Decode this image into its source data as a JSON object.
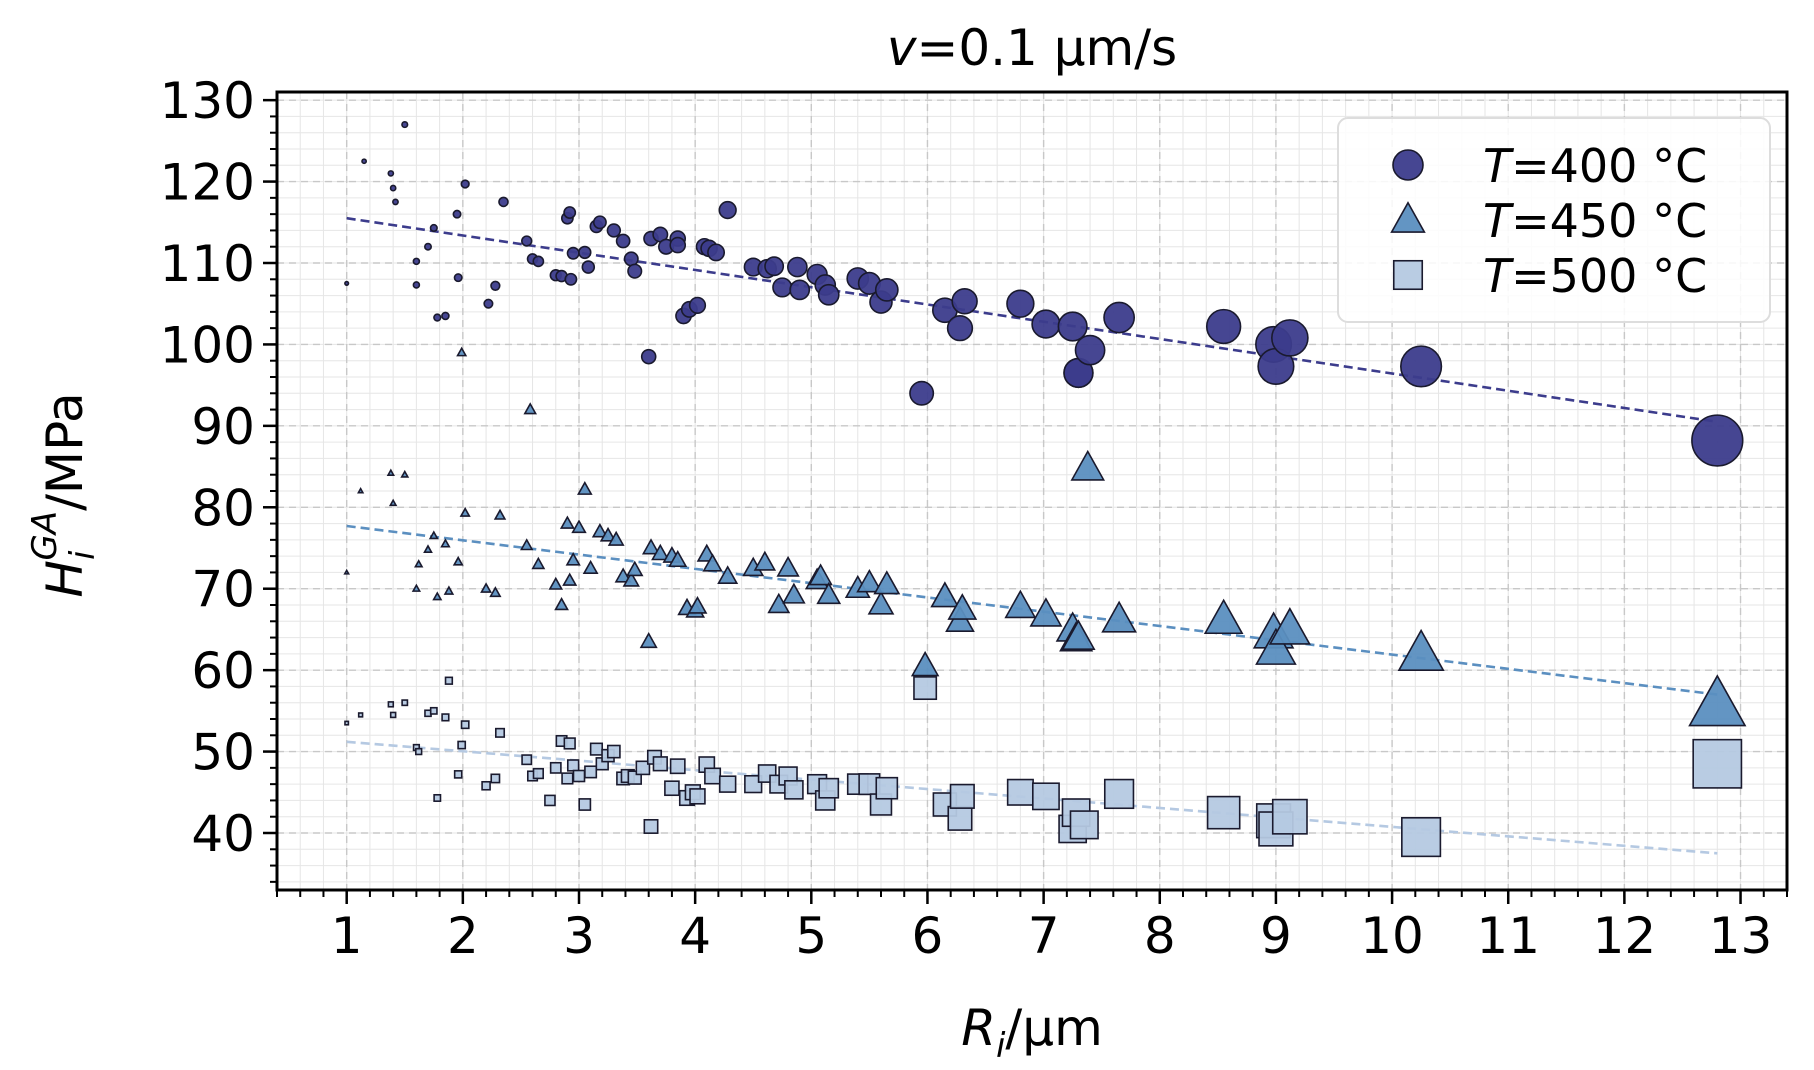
{
  "chart_data": {
    "type": "scatter",
    "title": {
      "italic": "v",
      "rest": "=0.1 µm/s"
    },
    "xlabel": {
      "italic": "R",
      "sub": "i",
      "rest": "/µm"
    },
    "ylabel": {
      "italic": "H",
      "sub": "i",
      "sup": "GA",
      "rest": "/MPa"
    },
    "xlim": [
      0.4,
      13.4
    ],
    "ylim": [
      33,
      131
    ],
    "xticks": [
      1,
      2,
      3,
      4,
      5,
      6,
      7,
      8,
      9,
      10,
      11,
      12,
      13
    ],
    "yticks": [
      40,
      50,
      60,
      70,
      80,
      90,
      100,
      110,
      120,
      130
    ],
    "grid": true,
    "legend_position": "top-right",
    "series": [
      {
        "name": "T=400 °C",
        "legend_italic": "T",
        "legend_rest": "=400 °C",
        "marker": "circle",
        "color": "#3c3c8c",
        "fit": {
          "x": [
            1.0,
            12.8
          ],
          "y": [
            115.5,
            90.5
          ]
        },
        "points": [
          [
            1.0,
            107.5
          ],
          [
            1.15,
            122.5
          ],
          [
            1.38,
            121
          ],
          [
            1.4,
            119.2
          ],
          [
            1.42,
            117.5
          ],
          [
            1.5,
            127
          ],
          [
            1.6,
            107.3
          ],
          [
            1.6,
            110.2
          ],
          [
            1.7,
            112
          ],
          [
            1.75,
            114.3
          ],
          [
            1.78,
            103.3
          ],
          [
            1.85,
            103.5
          ],
          [
            1.95,
            116
          ],
          [
            1.96,
            108.2
          ],
          [
            2.02,
            119.7
          ],
          [
            2.22,
            105
          ],
          [
            2.28,
            107.2
          ],
          [
            2.35,
            117.5
          ],
          [
            2.55,
            112.7
          ],
          [
            2.6,
            110.5
          ],
          [
            2.65,
            110.2
          ],
          [
            2.8,
            108.5
          ],
          [
            2.85,
            108.4
          ],
          [
            2.9,
            115.5
          ],
          [
            2.92,
            116.2
          ],
          [
            2.93,
            108
          ],
          [
            2.95,
            111.2
          ],
          [
            3.05,
            111.3
          ],
          [
            3.08,
            109.5
          ],
          [
            3.15,
            114.5
          ],
          [
            3.18,
            115
          ],
          [
            3.3,
            114
          ],
          [
            3.38,
            112.7
          ],
          [
            3.45,
            110.5
          ],
          [
            3.48,
            109
          ],
          [
            3.6,
            98.5
          ],
          [
            3.62,
            113
          ],
          [
            3.7,
            113.5
          ],
          [
            3.75,
            112
          ],
          [
            3.85,
            113
          ],
          [
            3.85,
            112.2
          ],
          [
            3.9,
            103.5
          ],
          [
            3.95,
            104.3
          ],
          [
            4.02,
            104.8
          ],
          [
            4.08,
            112
          ],
          [
            4.12,
            111.8
          ],
          [
            4.18,
            111.3
          ],
          [
            4.28,
            116.5
          ],
          [
            4.5,
            109.5
          ],
          [
            4.62,
            109.3
          ],
          [
            4.68,
            109.6
          ],
          [
            4.75,
            107
          ],
          [
            4.88,
            109.5
          ],
          [
            4.9,
            106.7
          ],
          [
            5.05,
            108.6
          ],
          [
            5.12,
            107.3
          ],
          [
            5.15,
            106.1
          ],
          [
            5.4,
            108.1
          ],
          [
            5.5,
            107.5
          ],
          [
            5.6,
            105.2
          ],
          [
            5.65,
            106.7
          ],
          [
            5.95,
            94
          ],
          [
            6.15,
            104.2
          ],
          [
            6.28,
            102
          ],
          [
            6.32,
            105.3
          ],
          [
            6.8,
            105
          ],
          [
            7.02,
            102.5
          ],
          [
            7.25,
            102.2
          ],
          [
            7.3,
            96.5
          ],
          [
            7.3,
            96.5
          ],
          [
            7.4,
            99.3
          ],
          [
            7.65,
            103.3
          ],
          [
            8.55,
            102.2
          ],
          [
            8.98,
            100
          ],
          [
            9.0,
            97.3
          ],
          [
            9.12,
            100.8
          ],
          [
            10.25,
            97.3
          ],
          [
            12.8,
            88.2
          ]
        ]
      },
      {
        "name": "T=450 °C",
        "legend_italic": "T",
        "legend_rest": "=450 °C",
        "marker": "triangle",
        "color": "#5b8fc0",
        "fit": {
          "x": [
            1.0,
            12.8
          ],
          "y": [
            77.7,
            57.0
          ]
        },
        "points": [
          [
            1.0,
            72
          ],
          [
            1.12,
            82
          ],
          [
            1.38,
            84.2
          ],
          [
            1.4,
            80.5
          ],
          [
            1.5,
            84
          ],
          [
            1.6,
            70
          ],
          [
            1.62,
            73
          ],
          [
            1.7,
            74.8
          ],
          [
            1.75,
            76.5
          ],
          [
            1.78,
            69
          ],
          [
            1.85,
            75.5
          ],
          [
            1.88,
            69.7
          ],
          [
            1.96,
            73.3
          ],
          [
            1.99,
            99
          ],
          [
            2.02,
            79.3
          ],
          [
            2.2,
            70
          ],
          [
            2.28,
            69.5
          ],
          [
            2.32,
            79
          ],
          [
            2.55,
            75.3
          ],
          [
            2.58,
            92
          ],
          [
            2.65,
            73
          ],
          [
            2.8,
            70.5
          ],
          [
            2.85,
            68
          ],
          [
            2.9,
            78
          ],
          [
            2.92,
            71
          ],
          [
            2.95,
            73.5
          ],
          [
            3.0,
            77.5
          ],
          [
            3.05,
            82.2
          ],
          [
            3.1,
            72.5
          ],
          [
            3.18,
            77
          ],
          [
            3.25,
            76.5
          ],
          [
            3.32,
            76
          ],
          [
            3.38,
            71.5
          ],
          [
            3.45,
            71
          ],
          [
            3.48,
            72.3
          ],
          [
            3.6,
            63.5
          ],
          [
            3.62,
            75
          ],
          [
            3.7,
            74.3
          ],
          [
            3.8,
            74
          ],
          [
            3.85,
            73.5
          ],
          [
            3.93,
            67.6
          ],
          [
            4.0,
            67.3
          ],
          [
            4.02,
            67.8
          ],
          [
            4.1,
            74.2
          ],
          [
            4.15,
            73
          ],
          [
            4.28,
            71.5
          ],
          [
            4.5,
            72.5
          ],
          [
            4.6,
            73.2
          ],
          [
            4.72,
            68
          ],
          [
            4.8,
            72.5
          ],
          [
            4.85,
            69.2
          ],
          [
            5.05,
            71
          ],
          [
            5.08,
            71.5
          ],
          [
            5.15,
            69.2
          ],
          [
            5.4,
            70
          ],
          [
            5.5,
            70.7
          ],
          [
            5.6,
            68
          ],
          [
            5.65,
            70.5
          ],
          [
            5.98,
            60.5
          ],
          [
            6.15,
            69
          ],
          [
            6.28,
            66
          ],
          [
            6.3,
            67.5
          ],
          [
            6.8,
            67.8
          ],
          [
            7.02,
            66.8
          ],
          [
            7.25,
            65
          ],
          [
            7.28,
            63.8
          ],
          [
            7.3,
            64
          ],
          [
            7.38,
            84.8
          ],
          [
            7.65,
            66.2
          ],
          [
            8.55,
            66.2
          ],
          [
            8.98,
            64.5
          ],
          [
            9.0,
            62.5
          ],
          [
            9.12,
            65
          ],
          [
            10.25,
            62
          ],
          [
            12.8,
            55.7
          ]
        ]
      },
      {
        "name": "T=500 °C",
        "legend_italic": "T",
        "legend_rest": "=500 °C",
        "marker": "square",
        "color": "#b5c9e2",
        "fit": {
          "x": [
            1.0,
            12.8
          ],
          "y": [
            51.2,
            37.5
          ]
        },
        "points": [
          [
            1.0,
            53.5
          ],
          [
            1.12,
            54.5
          ],
          [
            1.38,
            55.8
          ],
          [
            1.4,
            54.5
          ],
          [
            1.5,
            56
          ],
          [
            1.6,
            50.5
          ],
          [
            1.62,
            50
          ],
          [
            1.7,
            54.7
          ],
          [
            1.75,
            55
          ],
          [
            1.78,
            44.3
          ],
          [
            1.85,
            54.2
          ],
          [
            1.88,
            58.7
          ],
          [
            1.96,
            47.2
          ],
          [
            1.99,
            50.8
          ],
          [
            2.02,
            53.3
          ],
          [
            2.2,
            45.8
          ],
          [
            2.28,
            46.7
          ],
          [
            2.32,
            52.3
          ],
          [
            2.55,
            49
          ],
          [
            2.6,
            47
          ],
          [
            2.65,
            47.3
          ],
          [
            2.75,
            44
          ],
          [
            2.8,
            48
          ],
          [
            2.85,
            51.3
          ],
          [
            2.9,
            46.7
          ],
          [
            2.92,
            51
          ],
          [
            2.95,
            48.3
          ],
          [
            3.0,
            47
          ],
          [
            3.05,
            43.5
          ],
          [
            3.1,
            47.5
          ],
          [
            3.15,
            50.3
          ],
          [
            3.2,
            48.5
          ],
          [
            3.25,
            49.5
          ],
          [
            3.3,
            50
          ],
          [
            3.38,
            46.7
          ],
          [
            3.42,
            47
          ],
          [
            3.48,
            46.8
          ],
          [
            3.55,
            48
          ],
          [
            3.62,
            40.8
          ],
          [
            3.65,
            49.3
          ],
          [
            3.7,
            48.5
          ],
          [
            3.8,
            45.5
          ],
          [
            3.85,
            48.2
          ],
          [
            3.93,
            44.3
          ],
          [
            3.98,
            45
          ],
          [
            4.02,
            44.5
          ],
          [
            4.1,
            48.4
          ],
          [
            4.15,
            47
          ],
          [
            4.28,
            46
          ],
          [
            4.5,
            46
          ],
          [
            4.62,
            47.3
          ],
          [
            4.72,
            46
          ],
          [
            4.8,
            47
          ],
          [
            4.85,
            45.3
          ],
          [
            5.05,
            46
          ],
          [
            5.12,
            44
          ],
          [
            5.15,
            45.5
          ],
          [
            5.4,
            46
          ],
          [
            5.5,
            46
          ],
          [
            5.6,
            43.5
          ],
          [
            5.65,
            45.5
          ],
          [
            5.98,
            57.8
          ],
          [
            6.15,
            43.5
          ],
          [
            6.28,
            41.8
          ],
          [
            6.3,
            44.5
          ],
          [
            6.8,
            45
          ],
          [
            7.02,
            44.5
          ],
          [
            7.25,
            40.5
          ],
          [
            7.28,
            42.5
          ],
          [
            7.35,
            41
          ],
          [
            7.65,
            44.8
          ],
          [
            8.55,
            42.5
          ],
          [
            8.98,
            41.5
          ],
          [
            9.0,
            40.5
          ],
          [
            9.12,
            42
          ],
          [
            10.25,
            39.5
          ],
          [
            12.8,
            48.5
          ]
        ]
      }
    ]
  }
}
